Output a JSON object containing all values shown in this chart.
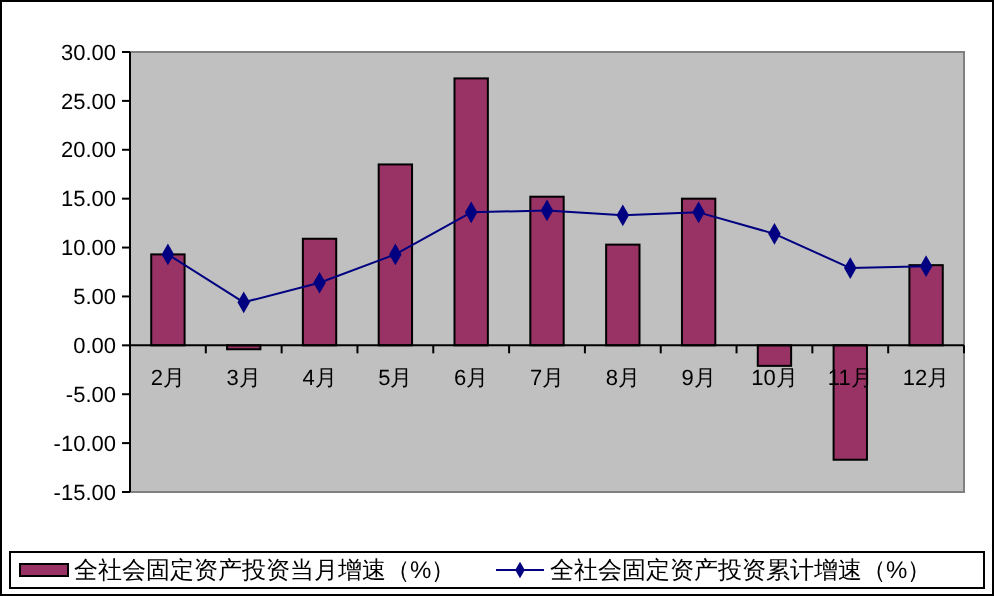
{
  "chart_data": {
    "type": "bar",
    "categories": [
      "2月",
      "3月",
      "4月",
      "5月",
      "6月",
      "7月",
      "8月",
      "9月",
      "10月",
      "11月",
      "12月"
    ],
    "series": [
      {
        "name": "全社会固定资产投资当月增速（%）",
        "color": "#993366",
        "values": [
          9.3,
          -0.4,
          10.9,
          18.5,
          27.3,
          15.2,
          10.3,
          15.0,
          -2.1,
          -11.7,
          8.2
        ]
      },
      {
        "name": "全社会固定资产投资累计增速（%）",
        "type": "line",
        "color": "#000080",
        "values": [
          9.3,
          4.4,
          6.4,
          9.3,
          13.6,
          13.8,
          13.3,
          13.6,
          11.4,
          7.9,
          8.1
        ]
      }
    ],
    "ylim": [
      -15,
      30
    ],
    "yticks": [
      {
        "value": -15,
        "label": "-15.00"
      },
      {
        "value": -10,
        "label": "-10.00"
      },
      {
        "value": -5,
        "label": "-5.00"
      },
      {
        "value": 0,
        "label": "0.00"
      },
      {
        "value": 5,
        "label": "5.00"
      },
      {
        "value": 10,
        "label": "10.00"
      },
      {
        "value": 15,
        "label": "15.00"
      },
      {
        "value": 20,
        "label": "20.00"
      },
      {
        "value": 25,
        "label": "25.00"
      },
      {
        "value": 30,
        "label": "30.00"
      }
    ],
    "grid": false,
    "legend": "bottom",
    "marker": "diamond"
  }
}
